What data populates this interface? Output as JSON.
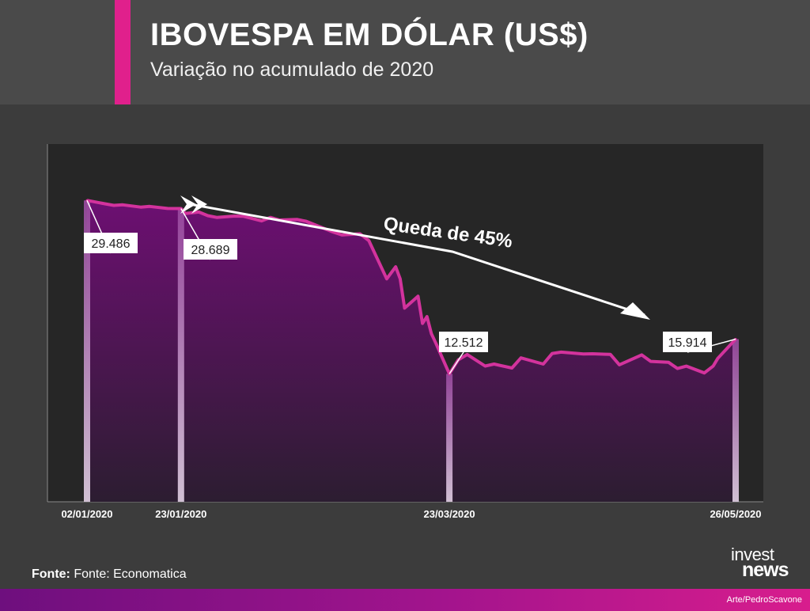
{
  "header": {
    "title": "IBOVESPA EM DÓLAR (US$)",
    "subtitle": "Variação no acumulado de 2020"
  },
  "colors": {
    "background": "#3c3c3c",
    "header_bg": "#4a4a4a",
    "plot_bg": "#262626",
    "accent": "#e0208c",
    "area_top": "#6d0f72",
    "area_bottom": "#2c1d31",
    "line": "#d3339d"
  },
  "chart_data": {
    "type": "area",
    "title": "IBOVESPA EM DÓLAR (US$)",
    "subtitle": "Variação no acumulado de 2020",
    "xlabel": "",
    "ylabel": "",
    "grid": false,
    "ylim": [
      0,
      35000
    ],
    "x": [
      "02/01/2020",
      "06/01/2020",
      "08/01/2020",
      "10/01/2020",
      "14/01/2020",
      "16/01/2020",
      "20/01/2020",
      "23/01/2020",
      "24/01/2020",
      "27/01/2020",
      "29/01/2020",
      "31/01/2020",
      "04/02/2020",
      "06/02/2020",
      "10/02/2020",
      "12/02/2020",
      "14/02/2020",
      "18/02/2020",
      "20/02/2020",
      "26/02/2020",
      "28/02/2020",
      "03/03/2020",
      "05/03/2020",
      "09/03/2020",
      "11/03/2020",
      "12/03/2020",
      "13/03/2020",
      "16/03/2020",
      "17/03/2020",
      "18/03/2020",
      "19/03/2020",
      "20/03/2020",
      "23/03/2020",
      "25/03/2020",
      "27/03/2020",
      "31/03/2020",
      "02/04/2020",
      "06/04/2020",
      "08/04/2020",
      "13/04/2020",
      "15/04/2020",
      "17/04/2020",
      "22/04/2020",
      "24/04/2020",
      "28/04/2020",
      "30/04/2020",
      "05/05/2020",
      "07/05/2020",
      "11/05/2020",
      "13/05/2020",
      "15/05/2020",
      "19/05/2020",
      "21/05/2020",
      "22/05/2020",
      "26/05/2020"
    ],
    "values": [
      29486,
      29150,
      29000,
      29050,
      28830,
      28900,
      28700,
      28689,
      28210,
      28350,
      27990,
      27820,
      27950,
      27930,
      27480,
      27820,
      27570,
      27620,
      27440,
      26400,
      26100,
      26220,
      25550,
      21810,
      22990,
      21810,
      18950,
      20110,
      17450,
      18120,
      16440,
      15500,
      12512,
      13890,
      14410,
      13280,
      13470,
      13090,
      14080,
      13470,
      14510,
      14640,
      14460,
      14480,
      14420,
      13400,
      14370,
      13740,
      13640,
      13040,
      13270,
      12610,
      13290,
      14030,
      15914
    ],
    "highlight_labels": [
      {
        "x": "02/01/2020",
        "value": 29486,
        "label": "29.486"
      },
      {
        "x": "23/01/2020",
        "value": 28689,
        "label": "28.689"
      },
      {
        "x": "23/03/2020",
        "value": 12512,
        "label": "12.512"
      },
      {
        "x": "26/05/2020",
        "value": 15914,
        "label": "15.914"
      }
    ],
    "x_tick_labels": [
      "02/01/2020",
      "23/01/2020",
      "23/03/2020",
      "26/05/2020"
    ],
    "annotation": "Queda de 45%"
  },
  "footer": {
    "source_label": "Fonte:",
    "source_text": "Fonte: Economatica",
    "logo_line1": "invest",
    "logo_line2": "news",
    "credit": "Arte/PedroScavone"
  }
}
